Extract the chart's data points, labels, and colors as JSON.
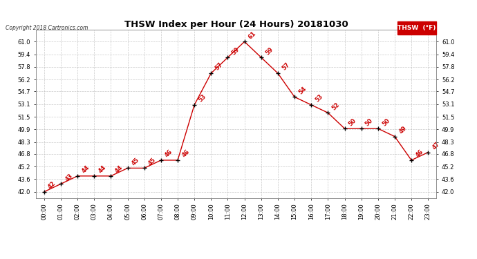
{
  "title": "THSW Index per Hour (24 Hours) 20181030",
  "copyright": "Copyright 2018 Cartronics.com",
  "legend_label": "THSW  (°F)",
  "hours": [
    0,
    1,
    2,
    3,
    4,
    5,
    6,
    7,
    8,
    9,
    10,
    11,
    12,
    13,
    14,
    15,
    16,
    17,
    18,
    19,
    20,
    21,
    22,
    23
  ],
  "values": [
    42,
    43,
    44,
    44,
    44,
    45,
    45,
    46,
    46,
    53,
    57,
    59,
    61,
    59,
    57,
    54,
    53,
    52,
    50,
    50,
    50,
    49,
    46,
    47
  ],
  "hour_labels": [
    "00:00",
    "01:00",
    "02:00",
    "03:00",
    "04:00",
    "05:00",
    "06:00",
    "07:00",
    "08:00",
    "09:00",
    "10:00",
    "11:00",
    "12:00",
    "13:00",
    "14:00",
    "15:00",
    "16:00",
    "17:00",
    "18:00",
    "19:00",
    "20:00",
    "21:00",
    "22:00",
    "23:00"
  ],
  "yticks": [
    42.0,
    43.6,
    45.2,
    46.8,
    48.3,
    49.9,
    51.5,
    53.1,
    54.7,
    56.2,
    57.8,
    59.4,
    61.0
  ],
  "ylim": [
    41.2,
    62.5
  ],
  "line_color": "#cc0000",
  "marker_color": "#000000",
  "grid_color": "#bbbbbb",
  "bg_color": "#ffffff",
  "title_fontsize": 9.5,
  "annotation_fontsize": 6.0,
  "copyright_fontsize": 5.5,
  "tick_fontsize": 6.0,
  "legend_bg": "#cc0000",
  "legend_fg": "#ffffff",
  "legend_fontsize": 6.5
}
